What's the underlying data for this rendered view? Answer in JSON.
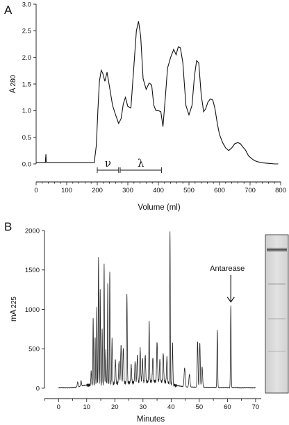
{
  "chart_data": [
    {
      "panel": "A",
      "type": "line",
      "xlabel": "Volume (ml)",
      "ylabel_main": "A",
      "ylabel_sub": "280",
      "xlim": [
        0,
        800
      ],
      "ylim": [
        0,
        3.0
      ],
      "x_ticks": [
        "0",
        "100",
        "200",
        "300",
        "400",
        "500",
        "600",
        "700",
        "800"
      ],
      "y_ticks": [
        "0.0",
        "0.5",
        "1.0",
        "1.5",
        "2.0",
        "2.5",
        "3.0"
      ],
      "fraction_labels": [
        {
          "label": "ν",
          "start": 200,
          "end": 270
        },
        {
          "label": "λ",
          "start": 275,
          "end": 410
        }
      ],
      "series": [
        {
          "x": [
            0,
            30,
            32,
            33,
            35,
            60,
            100,
            150,
            190,
            197,
            202,
            207,
            213,
            218,
            225,
            232,
            240,
            250,
            260,
            270,
            278,
            285,
            292,
            300,
            310,
            320,
            328,
            335,
            342,
            350,
            360,
            370,
            378,
            385,
            392,
            400,
            408,
            415,
            422,
            430,
            440,
            450,
            458,
            465,
            472,
            480,
            490,
            500,
            510,
            518,
            525,
            532,
            540,
            548,
            555,
            562,
            570,
            578,
            585,
            593,
            600,
            610,
            620,
            630,
            640,
            650,
            660,
            668,
            676,
            685,
            695,
            705,
            715,
            725,
            740,
            760,
            780,
            792
          ],
          "y": [
            0.02,
            0.02,
            0.18,
            0.05,
            0.02,
            0.02,
            0.02,
            0.02,
            0.02,
            0.35,
            1.0,
            1.55,
            1.76,
            1.7,
            1.55,
            1.72,
            1.45,
            1.1,
            0.92,
            0.76,
            0.85,
            1.12,
            1.25,
            1.08,
            1.05,
            1.85,
            2.5,
            2.68,
            2.4,
            1.6,
            1.4,
            1.52,
            1.48,
            1.1,
            1.0,
            1.0,
            0.98,
            0.7,
            1.2,
            1.8,
            2.0,
            2.15,
            2.05,
            2.2,
            2.18,
            1.9,
            1.1,
            0.92,
            1.1,
            1.65,
            1.94,
            1.9,
            1.3,
            0.98,
            1.04,
            1.16,
            1.22,
            1.2,
            1.04,
            0.75,
            0.55,
            0.4,
            0.3,
            0.25,
            0.3,
            0.38,
            0.4,
            0.38,
            0.32,
            0.26,
            0.15,
            0.1,
            0.06,
            0.04,
            0.02,
            0.01,
            0.0,
            0.0
          ]
        }
      ]
    },
    {
      "panel": "B",
      "type": "line",
      "xlabel": "Minutes",
      "ylabel_main": "mA",
      "ylabel_sub": "225",
      "xlim": [
        -5,
        72
      ],
      "ylim": [
        0,
        2000
      ],
      "x_ticks": [
        "0",
        "10",
        "20",
        "30",
        "40",
        "50",
        "60",
        "70"
      ],
      "y_ticks": [
        "0",
        "500",
        "1000",
        "1500",
        "2000"
      ],
      "annotation": {
        "label": "Antarease",
        "x": 61.2,
        "y": 1050
      },
      "baseline": [
        [
          0,
          5
        ],
        [
          5,
          5
        ],
        [
          10,
          40
        ],
        [
          15,
          45
        ],
        [
          20,
          60
        ],
        [
          25,
          70
        ],
        [
          30,
          80
        ],
        [
          35,
          90
        ],
        [
          38,
          80
        ],
        [
          41,
          40
        ],
        [
          45,
          15
        ],
        [
          50,
          12
        ],
        [
          55,
          8
        ],
        [
          60,
          6
        ],
        [
          65,
          5
        ],
        [
          70,
          5
        ]
      ],
      "peaks": [
        [
          6.8,
          60,
          0.15
        ],
        [
          8.0,
          70,
          0.15
        ],
        [
          11.6,
          180,
          0.12
        ],
        [
          12.3,
          860,
          0.1
        ],
        [
          13.0,
          620,
          0.1
        ],
        [
          13.6,
          980,
          0.1
        ],
        [
          14.2,
          1620,
          0.1
        ],
        [
          14.8,
          1200,
          0.1
        ],
        [
          15.5,
          720,
          0.1
        ],
        [
          16.2,
          1540,
          0.1
        ],
        [
          16.8,
          420,
          0.12
        ],
        [
          17.5,
          1280,
          0.1
        ],
        [
          18.2,
          1430,
          0.1
        ],
        [
          19.0,
          560,
          0.12
        ],
        [
          20.2,
          300,
          0.15
        ],
        [
          21.5,
          280,
          0.15
        ],
        [
          22.2,
          480,
          0.15
        ],
        [
          23.0,
          440,
          0.15
        ],
        [
          24.3,
          1120,
          0.12
        ],
        [
          25.8,
          230,
          0.15
        ],
        [
          27.2,
          260,
          0.15
        ],
        [
          28.0,
          340,
          0.15
        ],
        [
          29.0,
          420,
          0.15
        ],
        [
          29.8,
          300,
          0.15
        ],
        [
          30.8,
          340,
          0.15
        ],
        [
          32.2,
          760,
          0.12
        ],
        [
          33.5,
          300,
          0.15
        ],
        [
          35.0,
          500,
          0.15
        ],
        [
          36.0,
          280,
          0.15
        ],
        [
          37.2,
          360,
          0.15
        ],
        [
          38.5,
          320,
          0.15
        ],
        [
          39.6,
          1940,
          0.1
        ],
        [
          40.5,
          520,
          0.12
        ],
        [
          44.8,
          240,
          0.2
        ],
        [
          46.5,
          160,
          0.2
        ],
        [
          49.4,
          580,
          0.15
        ],
        [
          50.2,
          560,
          0.15
        ],
        [
          51.0,
          260,
          0.18
        ],
        [
          56.4,
          730,
          0.12
        ],
        [
          61.2,
          1040,
          0.12
        ]
      ],
      "gel_band": {
        "label": "",
        "position": 0.095,
        "intensity": 0.9
      }
    }
  ]
}
